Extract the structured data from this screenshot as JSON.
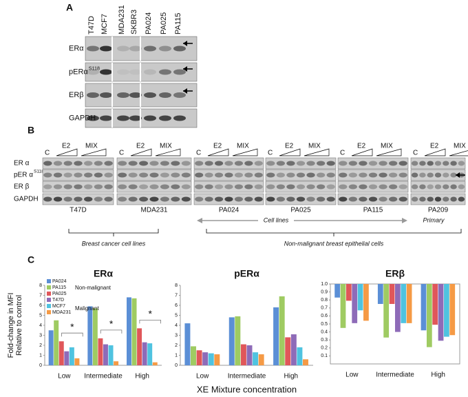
{
  "figure": {
    "panel_a": {
      "label": "A",
      "lanes": [
        "T47D",
        "MCF7",
        "MDA231",
        "SKBR3",
        "PA024",
        "PA025",
        "PA115"
      ],
      "rows": [
        {
          "text": "ERα"
        },
        {
          "text": "pERα",
          "superscript": "S118"
        },
        {
          "text": "ERβ"
        },
        {
          "text": "GAPDH"
        }
      ]
    },
    "panel_b": {
      "label": "B",
      "treatments": [
        "C",
        "E2",
        "MIX"
      ],
      "rows": [
        {
          "text": "ER α"
        },
        {
          "text": "pER α",
          "superscript": "S118"
        },
        {
          "text": "ER β"
        },
        {
          "text": "GAPDH"
        }
      ],
      "cell_lines": [
        "T47D",
        "MDA231",
        "PA024",
        "PA025",
        "PA115",
        "PA209"
      ],
      "annotations": [
        "Cell lines",
        "Primary",
        "Breast cancer cell lines",
        "Non-malignant breast epithelial cells"
      ]
    },
    "panel_c": {
      "label": "C"
    }
  },
  "chart_data": [
    {
      "type": "bar",
      "title": "ERα",
      "categories": [
        "Low",
        "Intermediate",
        "High"
      ],
      "ylabel": [
        "Fold-change in MFI",
        "Relative to control"
      ],
      "series": [
        {
          "name": "PA024",
          "color": "#5b8fd6",
          "values": [
            3.5,
            5.9,
            6.8
          ]
        },
        {
          "name": "PA115",
          "color": "#9fcb62",
          "values": [
            4.5,
            5.7,
            6.7
          ]
        },
        {
          "name": "PA025",
          "color": "#e0575a",
          "values": [
            2.4,
            2.7,
            3.7
          ]
        },
        {
          "name": "T47D",
          "color": "#8e6bb8",
          "values": [
            1.4,
            2.1,
            2.3
          ]
        },
        {
          "name": "MCF7",
          "color": "#4fc3e0",
          "values": [
            1.8,
            2.0,
            2.2
          ]
        },
        {
          "name": "MDA231",
          "color": "#f59a45",
          "values": [
            0.7,
            0.4,
            0.3
          ]
        }
      ],
      "ylim": [
        0,
        8
      ],
      "yticks": [
        0,
        1,
        2,
        3,
        4,
        5,
        6,
        7,
        8
      ],
      "legend": "top-left",
      "legend_groups": [
        "Non-malignant",
        "Malignant"
      ],
      "annotations": [
        "*",
        "*",
        "*"
      ]
    },
    {
      "type": "bar",
      "title": "pERα",
      "categories": [
        "Low",
        "Intermediate",
        "High"
      ],
      "xlabel": "XE Mixture concentration",
      "series": [
        {
          "color": "#5b8fd6",
          "values": [
            4.2,
            4.8,
            5.8
          ]
        },
        {
          "color": "#9fcb62",
          "values": [
            1.9,
            4.9,
            6.9
          ]
        },
        {
          "color": "#e0575a",
          "values": [
            1.5,
            2.1,
            2.8
          ]
        },
        {
          "color": "#8e6bb8",
          "values": [
            1.3,
            2.0,
            3.1
          ]
        },
        {
          "color": "#4fc3e0",
          "values": [
            1.2,
            1.3,
            1.8
          ]
        },
        {
          "color": "#f59a45",
          "values": [
            1.1,
            1.1,
            0.6
          ]
        }
      ],
      "ylim": [
        0,
        8
      ],
      "yticks": [
        0,
        1,
        2,
        3,
        4,
        5,
        6,
        7,
        8
      ]
    },
    {
      "type": "bar",
      "title": "ERβ",
      "categories": [
        "Low",
        "Intermediate",
        "High"
      ],
      "bar_direction": "down",
      "series": [
        {
          "color": "#5b8fd6",
          "values": [
            0.83,
            0.75,
            0.42
          ]
        },
        {
          "color": "#9fcb62",
          "values": [
            0.45,
            0.33,
            0.21
          ]
        },
        {
          "color": "#e0575a",
          "values": [
            0.79,
            0.75,
            0.49
          ]
        },
        {
          "color": "#8e6bb8",
          "values": [
            0.51,
            0.4,
            0.29
          ]
        },
        {
          "color": "#4fc3e0",
          "values": [
            0.67,
            0.51,
            0.34
          ]
        },
        {
          "color": "#f59a45",
          "values": [
            0.54,
            0.51,
            0.36
          ]
        }
      ],
      "ylim": [
        0,
        1
      ],
      "yticks": [
        0.1,
        0.2,
        0.3,
        0.4,
        0.5,
        0.6,
        0.7,
        0.8,
        0.9,
        {
          "value": 1,
          "label": "1.0"
        }
      ]
    }
  ]
}
